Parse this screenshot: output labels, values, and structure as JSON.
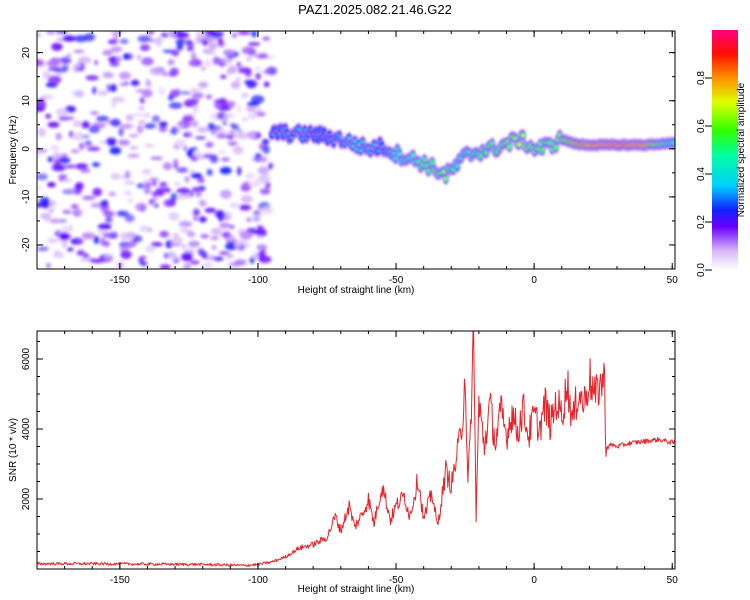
{
  "title": "PAZ1.2025.082.21.46.G22",
  "chart_data": [
    {
      "type": "heatmap",
      "xlabel": "Height of straight line (km)",
      "ylabel": "Frequency (Hz)",
      "xlim": [
        -180,
        51
      ],
      "ylim": [
        -25,
        24.5
      ],
      "x_ticks": [
        -150,
        -100,
        -50,
        0,
        50
      ],
      "y_ticks": [
        -20,
        -10,
        0,
        10,
        20
      ],
      "x_tick_labels": [
        "-150",
        "-100",
        "-50",
        "0",
        "50"
      ],
      "y_tick_labels": [
        "-20",
        "-10",
        "0",
        "10",
        "20"
      ],
      "colorbar": {
        "label": "Normalized spectral amplitude",
        "ticks": [
          0.0,
          0.2,
          0.4,
          0.6,
          0.8
        ],
        "tick_labels": [
          "0.0",
          "0.2",
          "0.4",
          "0.6",
          "0.8"
        ],
        "range": [
          0,
          1
        ]
      },
      "noise_region": {
        "x_from": -180,
        "x_to": -95,
        "amplitude": 0.15
      },
      "ridge": [
        {
          "x": -95,
          "f": 3.5,
          "a": 0.3
        },
        {
          "x": -90,
          "f": 3.2,
          "a": 0.32
        },
        {
          "x": -85,
          "f": 3.0,
          "a": 0.35
        },
        {
          "x": -80,
          "f": 3.0,
          "a": 0.3
        },
        {
          "x": -75,
          "f": 2.5,
          "a": 0.3
        },
        {
          "x": -70,
          "f": 2.0,
          "a": 0.35
        },
        {
          "x": -65,
          "f": 1.0,
          "a": 0.4
        },
        {
          "x": -60,
          "f": 0.0,
          "a": 0.38
        },
        {
          "x": -55,
          "f": 0.5,
          "a": 0.32
        },
        {
          "x": -50,
          "f": -1.0,
          "a": 0.45
        },
        {
          "x": -45,
          "f": -2.0,
          "a": 0.5
        },
        {
          "x": -40,
          "f": -3.0,
          "a": 0.55
        },
        {
          "x": -35,
          "f": -4.5,
          "a": 0.6
        },
        {
          "x": -32,
          "f": -5.5,
          "a": 0.65
        },
        {
          "x": -28,
          "f": -3.5,
          "a": 0.45
        },
        {
          "x": -25,
          "f": -1.5,
          "a": 0.5
        },
        {
          "x": -20,
          "f": -0.5,
          "a": 0.55
        },
        {
          "x": -15,
          "f": 0.0,
          "a": 0.6
        },
        {
          "x": -10,
          "f": 1.0,
          "a": 0.62
        },
        {
          "x": -5,
          "f": 2.0,
          "a": 0.7
        },
        {
          "x": 0,
          "f": 0.0,
          "a": 0.6
        },
        {
          "x": 5,
          "f": 0.5,
          "a": 0.6
        },
        {
          "x": 10,
          "f": 2.0,
          "a": 0.65
        },
        {
          "x": 15,
          "f": 1.0,
          "a": 0.85
        },
        {
          "x": 20,
          "f": 0.8,
          "a": 0.95
        },
        {
          "x": 30,
          "f": 0.8,
          "a": 1.0
        },
        {
          "x": 40,
          "f": 0.8,
          "a": 0.95
        },
        {
          "x": 45,
          "f": 1.0,
          "a": 0.6
        },
        {
          "x": 51,
          "f": 1.2,
          "a": 0.45
        }
      ]
    },
    {
      "type": "line",
      "xlabel": "Height of straight line (km)",
      "ylabel": "SNR (10 * v/v)",
      "xlim": [
        -180,
        51
      ],
      "ylim": [
        0,
        6800
      ],
      "x_ticks": [
        -150,
        -100,
        -50,
        0,
        50
      ],
      "y_ticks": [
        2000,
        4000,
        6000
      ],
      "x_tick_labels": [
        "-150",
        "-100",
        "-50",
        "0",
        "50"
      ],
      "y_tick_labels": [
        "2000",
        "4000",
        "6000"
      ],
      "color": "#e8232a",
      "x": [
        -180,
        -160,
        -140,
        -120,
        -105,
        -100,
        -95,
        -90,
        -85,
        -80,
        -75,
        -72,
        -70,
        -67,
        -65,
        -62,
        -60,
        -58,
        -55,
        -52,
        -50,
        -47,
        -45,
        -42,
        -40,
        -37,
        -35,
        -32,
        -30,
        -28,
        -26,
        -25,
        -24,
        -23,
        -22,
        -21,
        -20,
        -18,
        -16,
        -14,
        -12,
        -10,
        -8,
        -6,
        -4,
        -2,
        0,
        2,
        4,
        6,
        8,
        10,
        12,
        14,
        16,
        18,
        20,
        22,
        24,
        25.5,
        26,
        28,
        30,
        35,
        40,
        45,
        51
      ],
      "y": [
        150,
        150,
        140,
        130,
        100,
        130,
        200,
        350,
        600,
        700,
        900,
        1500,
        1100,
        1800,
        1200,
        1600,
        2000,
        1300,
        2400,
        1400,
        1800,
        2100,
        1500,
        2600,
        1400,
        2200,
        1200,
        2800,
        2400,
        3200,
        4200,
        5700,
        2300,
        4000,
        6800,
        1500,
        4700,
        3500,
        4700,
        3600,
        4500,
        3800,
        4500,
        3900,
        4600,
        3800,
        4400,
        4000,
        4700,
        4100,
        4800,
        4400,
        5300,
        4200,
        5100,
        4700,
        5500,
        4900,
        5300,
        5400,
        3450,
        3550,
        3500,
        3600,
        3650,
        3700,
        3600
      ]
    }
  ]
}
